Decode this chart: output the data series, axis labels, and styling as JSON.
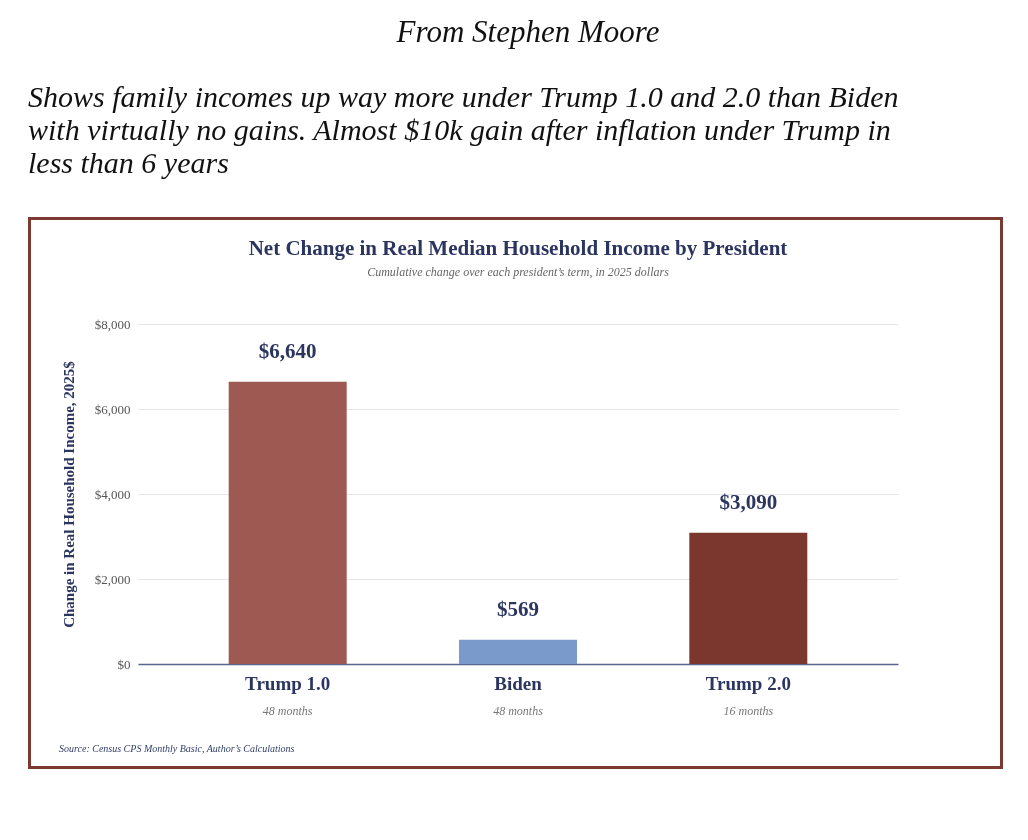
{
  "chart_data": {
    "type": "bar",
    "title": "Net Change in Real Median Household Income by President",
    "subtitle": "Cumulative change over each president’s term, in 2025 dollars",
    "ylabel": "Change in Real Household Income, 2025$",
    "categories": [
      "Trump 1.0",
      "Biden",
      "Trump 2.0"
    ],
    "values": [
      6640,
      569,
      3090
    ],
    "colors": [
      "#9e5a52",
      "#7b9acc",
      "#7b372e"
    ],
    "value_labels": [
      "$6,640",
      "$569",
      "$3,090"
    ],
    "ylim": [
      0,
      8000
    ],
    "yticks": [
      {
        "value": 0,
        "label": "$0"
      },
      {
        "value": 2000,
        "label": "$2,000"
      },
      {
        "value": 4000,
        "label": "$4,000"
      },
      {
        "value": 6000,
        "label": "$6,000"
      },
      {
        "value": 8000,
        "label": "$8,000"
      }
    ],
    "grid": "y",
    "annotations": [
      "From Stephen Moore",
      "Shows family incomes up way more under Trump 1.0 and 2.0 than Biden with virtually no gains. Almost $10k gain after inflation under Trump in less than 6 years",
      "Source: Census CPS Monthly Basic, Author’s Calculations",
      "48 months",
      "48 months",
      "16 months"
    ]
  }
}
